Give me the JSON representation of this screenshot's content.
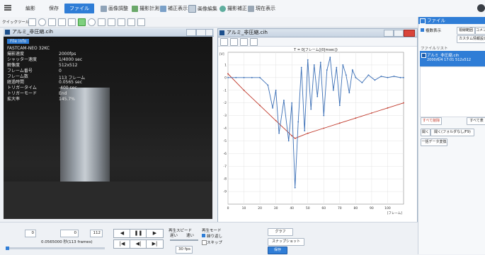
{
  "menu": {
    "save": "保存",
    "file": "ファイル",
    "display_adjust": "画像調整",
    "measure": "撮影計測",
    "analysis": "補正表示",
    "image_edit": "画像編集",
    "image_output": "撮影補正",
    "sync": "現在表示"
  },
  "toolbar": {
    "label": "クイックツール"
  },
  "video_window": {
    "title": "アルミ_非圧縮.cih"
  },
  "info": {
    "header": "File info",
    "lines": [
      {
        "k": "FASTCAM-NEO 32KC",
        "v": ""
      },
      {
        "k": "撮影速度",
        "v": "2000fps"
      },
      {
        "k": "シャッター速度",
        "v": "1/4000 sec"
      },
      {
        "k": "解像度",
        "v": "512x512"
      },
      {
        "k": "フレーム番号",
        "v": "0"
      },
      {
        "k": "フレーム数",
        "v": "113 フレーム"
      },
      {
        "k": "経過時間",
        "v": "0.0565 sec"
      },
      {
        "k": "トリガータイム",
        "v": "-400 sec"
      },
      {
        "k": "トリガーモード",
        "v": "End"
      },
      {
        "k": "拡大率",
        "v": "145.7%"
      }
    ]
  },
  "chart_window": {
    "title": "アルミ_非圧縮.cih"
  },
  "chart_data": {
    "type": "line",
    "title": "T = 0[フレーム](0[msec])",
    "ylabel": "[V]",
    "xlabel": "[フレーム]",
    "xlim": [
      0,
      110
    ],
    "ylim": [
      -10,
      2
    ],
    "x_ticks": [
      0,
      10,
      20,
      30,
      40,
      50,
      60,
      70,
      80,
      90,
      100
    ],
    "y_ticks": [
      1,
      0,
      -1,
      -2,
      -3,
      -4,
      -5,
      -6,
      -7,
      -8,
      -9
    ],
    "series": [
      {
        "color": "#c0392b",
        "x": [
          0,
          10,
          20,
          30,
          40,
          42,
          50,
          60,
          70,
          80,
          90,
          100,
          110
        ],
        "y": [
          0.3,
          -1.0,
          -2.2,
          -3.4,
          -4.6,
          -4.8,
          -4.4,
          -4.0,
          -3.6,
          -3.2,
          -2.8,
          -2.4,
          -2.0
        ]
      },
      {
        "color": "#3b6fb6",
        "x": [
          0,
          5,
          10,
          15,
          20,
          25,
          28,
          30,
          32,
          35,
          38,
          40,
          42,
          44,
          46,
          48,
          50,
          52,
          54,
          56,
          58,
          60,
          62,
          64,
          66,
          68,
          70,
          72,
          74,
          76,
          78,
          80,
          84,
          88,
          92,
          96,
          100,
          104,
          108,
          110
        ],
        "y": [
          0,
          0,
          0,
          0,
          0,
          -0.6,
          -2.4,
          -1.0,
          -4.4,
          -1.8,
          -5.0,
          -2.0,
          -8.7,
          -3.5,
          0.8,
          -4.2,
          1.4,
          -2.5,
          1.0,
          -1.5,
          1.2,
          -3.0,
          0.6,
          1.6,
          -1.0,
          0.8,
          -2.2,
          1.0,
          0.2,
          -1.2,
          0.6,
          0.0,
          -0.4,
          0.2,
          -0.2,
          0.1,
          0.0,
          0.1,
          0.0,
          0.0
        ]
      }
    ]
  },
  "right_panel": {
    "header": "ファイル",
    "all_display": "複数表示",
    "btn1": "視線範囲",
    "btn2": "コメント",
    "btn3": "カスタム情報設定",
    "list_label": "ファイルリスト",
    "file_name": "アルミ_非圧縮.cih",
    "file_meta": "2000/6/4 17:01  512x512",
    "select_all": "すべて削除",
    "select_all2": "すべて表",
    "open_btn": "開く",
    "open_folder": "開く(フォルダなし/F9)",
    "batch": "一括データ変換"
  },
  "bottom": {
    "frame_start": "0",
    "frame_cur": "0",
    "frame_end": "112",
    "time": "0.0565000 秒(113 frames)",
    "speed_label": "再生スピード",
    "speed_slow": "遅い",
    "speed_fast": "速い",
    "fps": "30 fps",
    "mode_label": "再生モード",
    "repeat": "繰り返し",
    "skip": "スキップ",
    "graph_btn": "グラフ",
    "snapshot_btn": "スナップショット",
    "save_btn": "保存"
  }
}
